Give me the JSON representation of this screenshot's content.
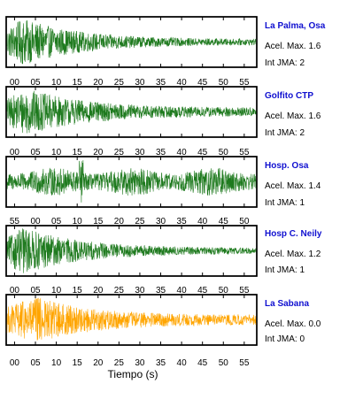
{
  "chart_data": [
    {
      "type": "line",
      "station": "La Palma, Osa",
      "acel_label": "Acel. Max. 1.6",
      "jma_label": "Int JMA: 2",
      "color": "#1e7a1e",
      "x_ticks": [
        "00",
        "05",
        "10",
        "15",
        "20",
        "25",
        "30",
        "35",
        "40",
        "45",
        "50",
        "55"
      ],
      "x_tick_values": [
        0,
        5,
        10,
        15,
        20,
        25,
        30,
        35,
        40,
        45,
        50,
        55
      ],
      "xlim": [
        -2,
        58
      ],
      "envelope": {
        "peak_time": 2,
        "peak_amplitude": 1.0,
        "end_amplitude": 0.12
      }
    },
    {
      "type": "line",
      "station": "Golfito CTP",
      "acel_label": "Acel. Max. 1.6",
      "jma_label": "Int JMA: 2",
      "color": "#1e7a1e",
      "x_ticks": [
        "00",
        "05",
        "10",
        "15",
        "20",
        "25",
        "30",
        "35",
        "40",
        "45",
        "50",
        "55"
      ],
      "x_tick_values": [
        0,
        5,
        10,
        15,
        20,
        25,
        30,
        35,
        40,
        45,
        50,
        55
      ],
      "xlim": [
        -2,
        58
      ],
      "envelope": {
        "peak_time": 3,
        "peak_amplitude": 1.0,
        "end_amplitude": 0.18
      }
    },
    {
      "type": "line",
      "station": "Hosp. Osa",
      "acel_label": "Acel. Max. 1.4",
      "jma_label": "Int JMA: 1",
      "color": "#1e7a1e",
      "x_ticks": [
        "55",
        "00",
        "05",
        "10",
        "15",
        "20",
        "25",
        "30",
        "35",
        "40",
        "45",
        "50"
      ],
      "x_tick_values": [
        0,
        5,
        10,
        15,
        20,
        25,
        30,
        35,
        40,
        45,
        50,
        55
      ],
      "xlim": [
        -2,
        58
      ],
      "envelope": {
        "peak_time": 20,
        "peak_amplitude": 1.0,
        "end_amplitude": 0.3
      }
    },
    {
      "type": "line",
      "station": "Hosp C. Neily",
      "acel_label": "Acel. Max. 1.2",
      "jma_label": "Int JMA: 1",
      "color": "#1e7a1e",
      "x_ticks": [
        "00",
        "05",
        "10",
        "15",
        "20",
        "25",
        "30",
        "35",
        "40",
        "45",
        "50",
        "55"
      ],
      "x_tick_values": [
        0,
        5,
        10,
        15,
        20,
        25,
        30,
        35,
        40,
        45,
        50,
        55
      ],
      "xlim": [
        -2,
        58
      ],
      "envelope": {
        "peak_time": 2,
        "peak_amplitude": 1.0,
        "end_amplitude": 0.12
      }
    },
    {
      "type": "line",
      "station": "La Sabana",
      "acel_label": "Acel. Max. 0.0",
      "jma_label": "Int JMA: 0",
      "color": "#ffa500",
      "x_ticks": [
        "00",
        "05",
        "10",
        "15",
        "20",
        "25",
        "30",
        "35",
        "40",
        "45",
        "50",
        "55"
      ],
      "x_tick_values": [
        0,
        5,
        10,
        15,
        20,
        25,
        30,
        35,
        40,
        45,
        50,
        55
      ],
      "xlim": [
        -2,
        58
      ],
      "envelope": {
        "peak_time": 5,
        "peak_amplitude": 1.0,
        "end_amplitude": 0.2
      }
    }
  ],
  "xlabel": "Tiempo (s)"
}
